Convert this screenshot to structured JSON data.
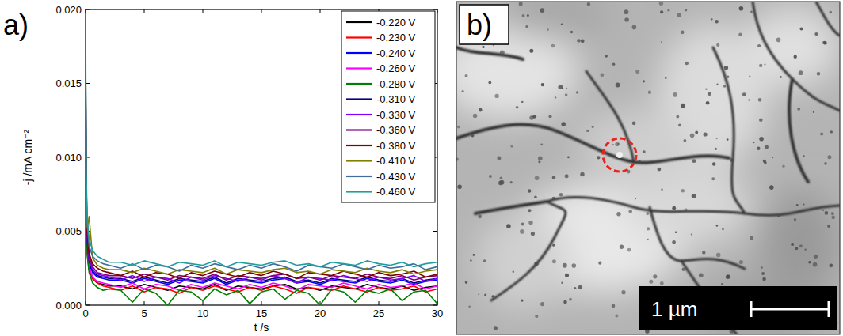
{
  "panels": [
    {
      "label": "a)"
    },
    {
      "label": "b)",
      "scale_bar": "1 µm"
    }
  ],
  "chart_data": {
    "type": "line",
    "x_label": "t /s",
    "y_label": "-j /mA cm⁻²",
    "xlim": [
      0,
      30
    ],
    "ylim": [
      0,
      0.02
    ],
    "xticks": [
      0,
      5,
      10,
      15,
      20,
      25,
      30
    ],
    "yticks": [
      {
        "value": 0,
        "label": "0.000"
      },
      {
        "value": 0.005,
        "label": "0.005"
      },
      {
        "value": 0.01,
        "label": "0.010"
      },
      {
        "value": 0.015,
        "label": "0.015"
      },
      {
        "value": 0.02,
        "label": "0.020"
      }
    ],
    "grid": false,
    "legend": "top-right",
    "x": [
      0,
      0.05,
      0.15,
      0.3,
      0.6,
      1,
      1.5,
      2,
      3,
      4,
      5,
      6,
      7,
      8,
      9,
      10,
      11,
      12,
      13,
      14,
      15,
      16,
      17,
      18,
      19,
      20,
      21,
      22,
      23,
      24,
      25,
      26,
      27,
      28,
      29,
      30
    ],
    "series": [
      {
        "name": "-0.220 V",
        "color": "#000000",
        "values": [
          0.014,
          0.006,
          0.0035,
          0.0024,
          0.0018,
          0.0015,
          0.0014,
          0.0013,
          0.0013,
          0.0011,
          0.0014,
          0.0012,
          0.001,
          0.0013,
          0.0012,
          0.0011,
          0.0014,
          0.001,
          0.0013,
          0.0012,
          0.0011,
          0.0013,
          0.0014,
          0.0011,
          0.0012,
          0.001,
          0.0013,
          0.0012,
          0.0011,
          0.0014,
          0.0012,
          0.0011,
          0.0013,
          0.001,
          0.0012,
          0.0013
        ]
      },
      {
        "name": "-0.230 V",
        "color": "#ff0000",
        "values": [
          0.015,
          0.0065,
          0.0036,
          0.0025,
          0.0018,
          0.0015,
          0.0013,
          0.0012,
          0.001,
          0.0013,
          0.0009,
          0.0012,
          0.0011,
          0.0008,
          0.0012,
          0.001,
          0.0013,
          0.0011,
          0.0009,
          0.0012,
          0.001,
          0.0013,
          0.0011,
          0.0008,
          0.0012,
          0.0011,
          0.001,
          0.0013,
          0.0011,
          0.0009,
          0.0012,
          0.001,
          0.0011,
          0.0013,
          0.0009,
          0.0011
        ]
      },
      {
        "name": "-0.240 V",
        "color": "#0000ff",
        "values": [
          0.016,
          0.0068,
          0.004,
          0.0028,
          0.0022,
          0.0019,
          0.0018,
          0.0017,
          0.0017,
          0.0015,
          0.0018,
          0.0016,
          0.0014,
          0.0017,
          0.0016,
          0.0015,
          0.0018,
          0.0014,
          0.0017,
          0.0016,
          0.0015,
          0.0017,
          0.0018,
          0.0015,
          0.0016,
          0.0014,
          0.0017,
          0.0016,
          0.0015,
          0.0018,
          0.0016,
          0.0015,
          0.0017,
          0.0014,
          0.0016,
          0.0017
        ]
      },
      {
        "name": "-0.260 V",
        "color": "#ff00ff",
        "values": [
          0.015,
          0.0062,
          0.0036,
          0.0026,
          0.0019,
          0.0016,
          0.0015,
          0.0014,
          0.0012,
          0.0015,
          0.0011,
          0.0014,
          0.0013,
          0.001,
          0.0014,
          0.0012,
          0.0015,
          0.0013,
          0.0011,
          0.0014,
          0.0012,
          0.0015,
          0.0013,
          0.001,
          0.0014,
          0.0013,
          0.0012,
          0.0015,
          0.0013,
          0.0011,
          0.0014,
          0.0012,
          0.0013,
          0.0015,
          0.0011,
          0.0013
        ]
      },
      {
        "name": "-0.280 V",
        "color": "#008000",
        "values": [
          0.015,
          0.006,
          0.0033,
          0.0022,
          0.0015,
          0.0012,
          0.001,
          0.0011,
          0.001,
          0.0002,
          0.0011,
          0.0008,
          0.0,
          0.001,
          0.0009,
          0.0003,
          0.0011,
          0.0007,
          0.001,
          0.0001,
          0.0009,
          0.0011,
          0.0004,
          0.001,
          0.0008,
          0.0,
          0.0011,
          0.0009,
          0.0002,
          0.001,
          0.0008,
          0.0011,
          0.0003,
          0.0009,
          0.001,
          0.0001
        ]
      },
      {
        "name": "-0.310 V",
        "color": "#000080",
        "values": [
          0.016,
          0.007,
          0.0042,
          0.003,
          0.0023,
          0.002,
          0.0019,
          0.0018,
          0.0018,
          0.0016,
          0.0019,
          0.0017,
          0.0015,
          0.0018,
          0.0017,
          0.0016,
          0.0019,
          0.0015,
          0.0018,
          0.0017,
          0.0016,
          0.0018,
          0.0019,
          0.0016,
          0.0017,
          0.0015,
          0.0018,
          0.0017,
          0.0016,
          0.0019,
          0.0017,
          0.0016,
          0.0018,
          0.0015,
          0.0017,
          0.0018
        ]
      },
      {
        "name": "-0.330 V",
        "color": "#8000ff",
        "values": [
          0.0165,
          0.0072,
          0.0044,
          0.0031,
          0.0024,
          0.0021,
          0.002,
          0.0019,
          0.0017,
          0.002,
          0.0016,
          0.0019,
          0.0018,
          0.0015,
          0.0019,
          0.0017,
          0.002,
          0.0018,
          0.0016,
          0.0019,
          0.0017,
          0.002,
          0.0018,
          0.0015,
          0.0019,
          0.0018,
          0.0017,
          0.002,
          0.0018,
          0.0016,
          0.0019,
          0.0017,
          0.0018,
          0.002,
          0.0016,
          0.0018
        ]
      },
      {
        "name": "-0.360 V",
        "color": "#800080",
        "values": [
          0.017,
          0.0075,
          0.0046,
          0.0033,
          0.0026,
          0.0022,
          0.0021,
          0.002,
          0.002,
          0.0018,
          0.0021,
          0.0019,
          0.0017,
          0.002,
          0.0019,
          0.0018,
          0.0021,
          0.0017,
          0.002,
          0.0019,
          0.0018,
          0.002,
          0.0021,
          0.0018,
          0.0019,
          0.0017,
          0.002,
          0.0019,
          0.0018,
          0.0021,
          0.0019,
          0.0018,
          0.002,
          0.0017,
          0.0019,
          0.002
        ]
      },
      {
        "name": "-0.380 V",
        "color": "#800000",
        "values": [
          0.0175,
          0.0078,
          0.0048,
          0.0035,
          0.0028,
          0.0025,
          0.0023,
          0.0022,
          0.002,
          0.0023,
          0.0019,
          0.0022,
          0.0021,
          0.0018,
          0.0022,
          0.002,
          0.0023,
          0.0021,
          0.0019,
          0.0022,
          0.002,
          0.0023,
          0.0021,
          0.0018,
          0.0022,
          0.0021,
          0.002,
          0.0023,
          0.0021,
          0.0019,
          0.0022,
          0.002,
          0.0021,
          0.0023,
          0.0019,
          0.0021
        ]
      },
      {
        "name": "-0.410 V",
        "color": "#808000",
        "values": [
          0.018,
          0.008,
          0.0052,
          0.006,
          0.0032,
          0.0027,
          0.0025,
          0.0024,
          0.0024,
          0.0022,
          0.0025,
          0.0023,
          0.0021,
          0.0024,
          0.0023,
          0.0022,
          0.0025,
          0.0021,
          0.0024,
          0.0023,
          0.0022,
          0.0024,
          0.0025,
          0.0022,
          0.0023,
          0.0021,
          0.0024,
          0.0023,
          0.0022,
          0.0025,
          0.0023,
          0.0022,
          0.0024,
          0.0021,
          0.0023,
          0.0024
        ]
      },
      {
        "name": "-0.430 V",
        "color": "#3f6e9e",
        "values": [
          0.0185,
          0.0082,
          0.0054,
          0.004,
          0.0033,
          0.003,
          0.0028,
          0.0027,
          0.0025,
          0.0028,
          0.0024,
          0.0027,
          0.0026,
          0.0023,
          0.0027,
          0.0025,
          0.0028,
          0.0026,
          0.0024,
          0.0027,
          0.0025,
          0.0028,
          0.0026,
          0.0023,
          0.0027,
          0.0026,
          0.0025,
          0.0028,
          0.0026,
          0.0024,
          0.0027,
          0.0025,
          0.0026,
          0.0028,
          0.0024,
          0.0026
        ]
      },
      {
        "name": "-0.460 V",
        "color": "#1f9e9e",
        "values": [
          0.02,
          0.009,
          0.0058,
          0.0045,
          0.0037,
          0.0033,
          0.0031,
          0.0029,
          0.0029,
          0.0027,
          0.003,
          0.0028,
          0.0026,
          0.0029,
          0.0028,
          0.0027,
          0.003,
          0.0026,
          0.0029,
          0.0028,
          0.0027,
          0.0029,
          0.003,
          0.0027,
          0.0028,
          0.0026,
          0.0029,
          0.0028,
          0.0027,
          0.003,
          0.0028,
          0.0027,
          0.0029,
          0.0026,
          0.0028,
          0.0029
        ]
      }
    ]
  }
}
